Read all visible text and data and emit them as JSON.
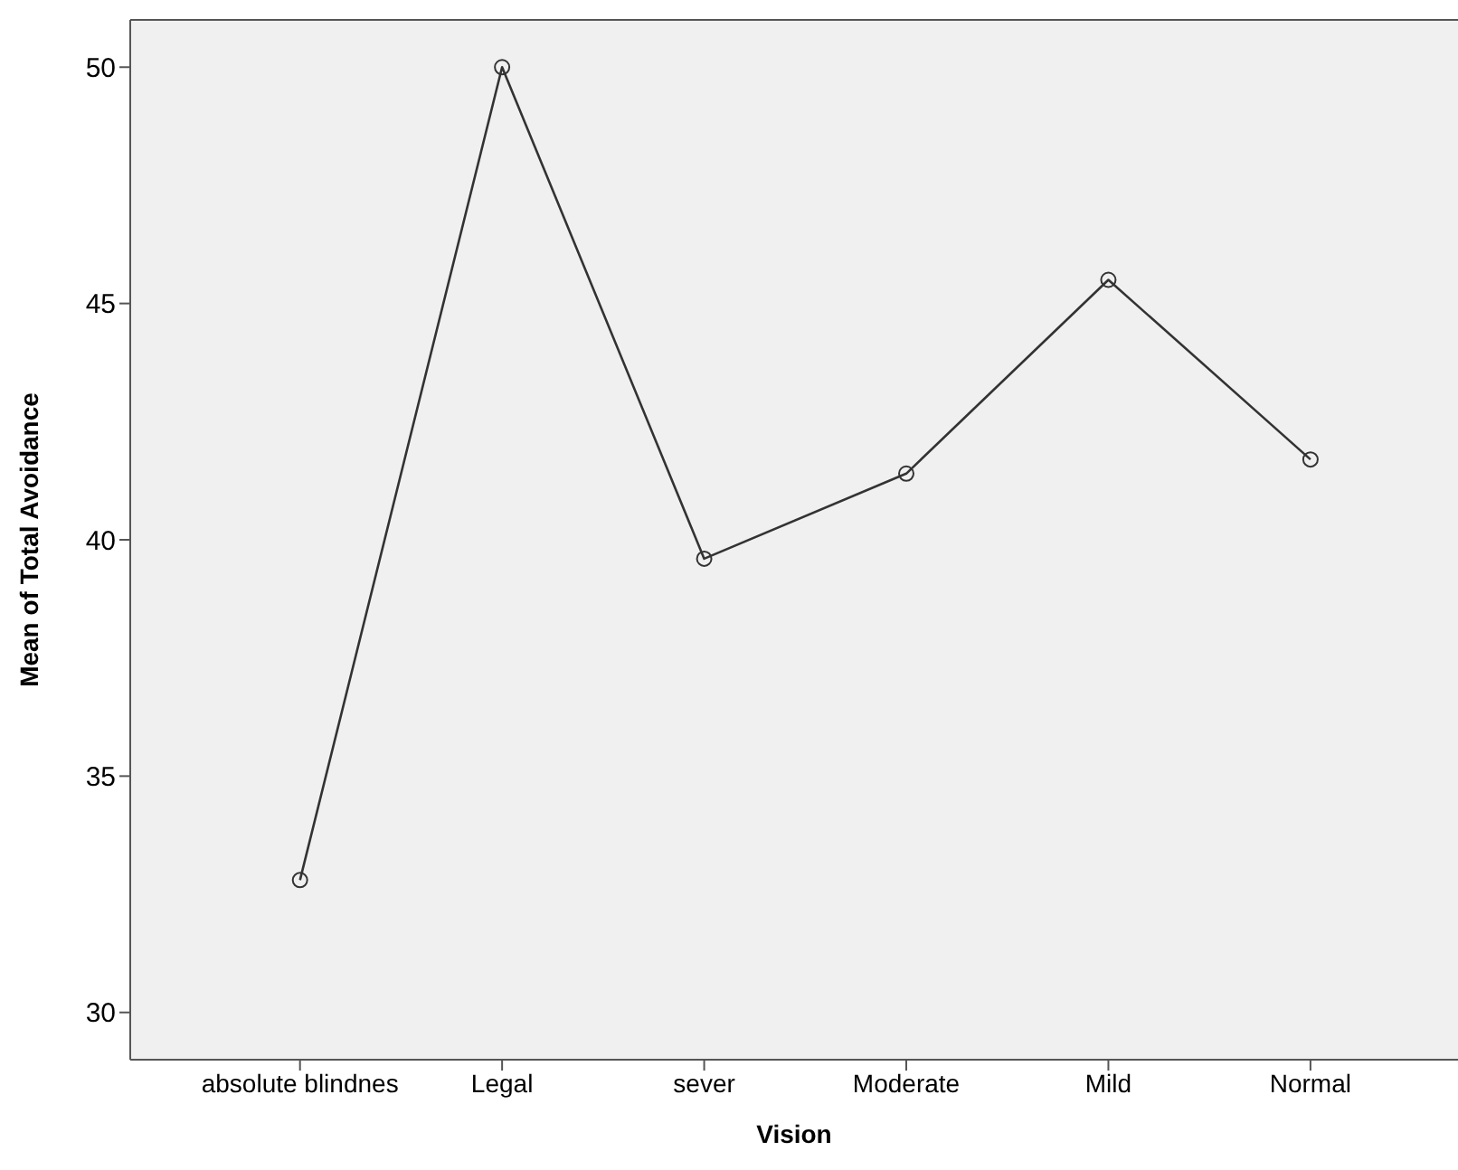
{
  "chart_data": {
    "type": "line",
    "xlabel": "Vision",
    "ylabel": "Mean of Total Avoidance",
    "categories": [
      "absolute blindnes",
      "Legal",
      "sever",
      "Moderate",
      "Mild",
      "Normal"
    ],
    "series": [
      {
        "color": "#333333",
        "values": [
          32.8,
          50,
          39.6,
          41.4,
          45.5,
          41.7
        ]
      }
    ],
    "ylim": [
      29,
      51
    ],
    "yticks": [
      30,
      35,
      40,
      45,
      50
    ],
    "grid": false,
    "legend": false,
    "marker": "circle",
    "line_style": "solid"
  }
}
